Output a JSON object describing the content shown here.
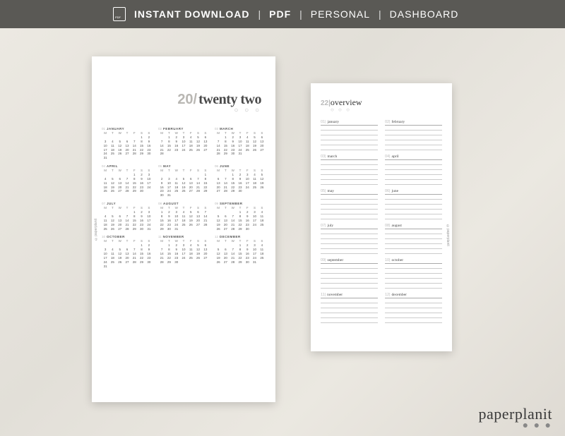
{
  "topbar": {
    "items": [
      "INSTANT DOWNLOAD",
      "PDF",
      "PERSONAL",
      "DASHBOARD"
    ]
  },
  "watermark": "paperplanit",
  "side_label": "©paperplanit",
  "year": {
    "num": "20/",
    "word": "twenty two"
  },
  "dow": [
    "M",
    "T",
    "W",
    "T",
    "F",
    "S",
    "S"
  ],
  "months": [
    {
      "num": "01",
      "name": "JANUARY",
      "lead": 5,
      "days": 31
    },
    {
      "num": "02",
      "name": "FEBRUARY",
      "lead": 1,
      "days": 28
    },
    {
      "num": "03",
      "name": "MARCH",
      "lead": 1,
      "days": 31
    },
    {
      "num": "04",
      "name": "APRIL",
      "lead": 4,
      "days": 30
    },
    {
      "num": "05",
      "name": "MAY",
      "lead": 6,
      "days": 31
    },
    {
      "num": "06",
      "name": "JUNE",
      "lead": 2,
      "days": 30
    },
    {
      "num": "07",
      "name": "JULY",
      "lead": 4,
      "days": 31
    },
    {
      "num": "08",
      "name": "AUGUST",
      "lead": 0,
      "days": 31
    },
    {
      "num": "09",
      "name": "SEPTEMBER",
      "lead": 3,
      "days": 30
    },
    {
      "num": "10",
      "name": "OCTOBER",
      "lead": 5,
      "days": 31
    },
    {
      "num": "11",
      "name": "NOVEMBER",
      "lead": 1,
      "days": 30
    },
    {
      "num": "12",
      "name": "DECEMBER",
      "lead": 3,
      "days": 31
    }
  ],
  "overview": {
    "title_num": "22|",
    "title_word": "overview",
    "lines_per_cell": 5,
    "cells": [
      {
        "num": "01|",
        "name": "january"
      },
      {
        "num": "02|",
        "name": "february"
      },
      {
        "num": "03|",
        "name": "march"
      },
      {
        "num": "04|",
        "name": "april"
      },
      {
        "num": "05|",
        "name": "may"
      },
      {
        "num": "06|",
        "name": "june"
      },
      {
        "num": "07|",
        "name": "july"
      },
      {
        "num": "08|",
        "name": "august"
      },
      {
        "num": "09|",
        "name": "september"
      },
      {
        "num": "10|",
        "name": "october"
      },
      {
        "num": "11|",
        "name": "november"
      },
      {
        "num": "12|",
        "name": "december"
      }
    ]
  }
}
